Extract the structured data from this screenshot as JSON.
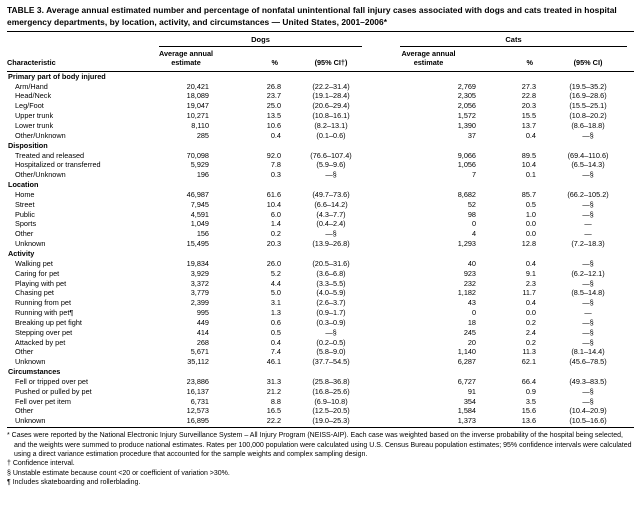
{
  "title": "TABLE 3. Average annual estimated number and percentage of nonfatal unintentional fall injury cases associated with dogs and cats treated in hospital emergency departments, by location, activity, and circumstances — United States, 2001–2006*",
  "header": {
    "characteristic": "Characteristic",
    "groups": [
      {
        "label": "Dogs",
        "estimate": "Average annual estimate",
        "pct": "%",
        "ci": "(95% CI†)"
      },
      {
        "label": "Cats",
        "estimate": "Average annual estimate",
        "pct": "%",
        "ci": "(95% CI)"
      }
    ]
  },
  "sections": [
    {
      "label": "Primary part of body injured",
      "rows": [
        {
          "label": "Arm/Hand",
          "dogs": [
            "20,421",
            "26.8",
            "(22.2–31.4)"
          ],
          "cats": [
            "2,769",
            "27.3",
            "(19.5–35.2)"
          ]
        },
        {
          "label": "Head/Neck",
          "dogs": [
            "18,089",
            "23.7",
            "(19.1–28.4)"
          ],
          "cats": [
            "2,305",
            "22.8",
            "(16.9–28.6)"
          ]
        },
        {
          "label": "Leg/Foot",
          "dogs": [
            "19,047",
            "25.0",
            "(20.6–29.4)"
          ],
          "cats": [
            "2,056",
            "20.3",
            "(15.5–25.1)"
          ]
        },
        {
          "label": "Upper trunk",
          "dogs": [
            "10,271",
            "13.5",
            "(10.8–16.1)"
          ],
          "cats": [
            "1,572",
            "15.5",
            "(10.8–20.2)"
          ]
        },
        {
          "label": "Lower trunk",
          "dogs": [
            "8,110",
            "10.6",
            "(8.2–13.1)"
          ],
          "cats": [
            "1,390",
            "13.7",
            "(8.6–18.8)"
          ]
        },
        {
          "label": "Other/Unknown",
          "dogs": [
            "285",
            "0.4",
            "(0.1–0.6)"
          ],
          "cats": [
            "37",
            "0.4",
            "—§"
          ]
        }
      ]
    },
    {
      "label": "Disposition",
      "rows": [
        {
          "label": "Treated and released",
          "dogs": [
            "70,098",
            "92.0",
            "(76.6–107.4)"
          ],
          "cats": [
            "9,066",
            "89.5",
            "(69.4–110.6)"
          ]
        },
        {
          "label": "Hospitalized or transferred",
          "dogs": [
            "5,929",
            "7.8",
            "(5.9–9.6)"
          ],
          "cats": [
            "1,056",
            "10.4",
            "(6.5–14.3)"
          ]
        },
        {
          "label": "Other/Unknown",
          "dogs": [
            "196",
            "0.3",
            "—§"
          ],
          "cats": [
            "7",
            "0.1",
            "—§"
          ]
        }
      ]
    },
    {
      "label": "Location",
      "rows": [
        {
          "label": "Home",
          "dogs": [
            "46,987",
            "61.6",
            "(49.7–73.6)"
          ],
          "cats": [
            "8,682",
            "85.7",
            "(66.2–105.2)"
          ]
        },
        {
          "label": "Street",
          "dogs": [
            "7,945",
            "10.4",
            "(6.6–14.2)"
          ],
          "cats": [
            "52",
            "0.5",
            "—§"
          ]
        },
        {
          "label": "Public",
          "dogs": [
            "4,591",
            "6.0",
            "(4.3–7.7)"
          ],
          "cats": [
            "98",
            "1.0",
            "—§"
          ]
        },
        {
          "label": "Sports",
          "dogs": [
            "1,049",
            "1.4",
            "(0.4–2.4)"
          ],
          "cats": [
            "0",
            "0.0",
            "—"
          ]
        },
        {
          "label": "Other",
          "dogs": [
            "156",
            "0.2",
            "—§"
          ],
          "cats": [
            "4",
            "0.0",
            "—"
          ]
        },
        {
          "label": "Unknown",
          "dogs": [
            "15,495",
            "20.3",
            "(13.9–26.8)"
          ],
          "cats": [
            "1,293",
            "12.8",
            "(7.2–18.3)"
          ]
        }
      ]
    },
    {
      "label": "Activity",
      "rows": [
        {
          "label": "Walking pet",
          "dogs": [
            "19,834",
            "26.0",
            "(20.5–31.6)"
          ],
          "cats": [
            "40",
            "0.4",
            "—§"
          ]
        },
        {
          "label": "Caring for pet",
          "dogs": [
            "3,929",
            "5.2",
            "(3.6–6.8)"
          ],
          "cats": [
            "923",
            "9.1",
            "(6.2–12.1)"
          ]
        },
        {
          "label": "Playing with pet",
          "dogs": [
            "3,372",
            "4.4",
            "(3.3–5.5)"
          ],
          "cats": [
            "232",
            "2.3",
            "—§"
          ]
        },
        {
          "label": "Chasing pet",
          "dogs": [
            "3,779",
            "5.0",
            "(4.0–5.9)"
          ],
          "cats": [
            "1,182",
            "11.7",
            "(8.5–14.8)"
          ]
        },
        {
          "label": "Running from pet",
          "dogs": [
            "2,399",
            "3.1",
            "(2.6–3.7)"
          ],
          "cats": [
            "43",
            "0.4",
            "—§"
          ]
        },
        {
          "label": "Running with pet¶",
          "dogs": [
            "995",
            "1.3",
            "(0.9–1.7)"
          ],
          "cats": [
            "0",
            "0.0",
            "—"
          ]
        },
        {
          "label": "Breaking up pet fight",
          "dogs": [
            "449",
            "0.6",
            "(0.3–0.9)"
          ],
          "cats": [
            "18",
            "0.2",
            "—§"
          ]
        },
        {
          "label": "Stepping over pet",
          "dogs": [
            "414",
            "0.5",
            "—§"
          ],
          "cats": [
            "245",
            "2.4",
            "—§"
          ]
        },
        {
          "label": "Attacked by pet",
          "dogs": [
            "268",
            "0.4",
            "(0.2–0.5)"
          ],
          "cats": [
            "20",
            "0.2",
            "—§"
          ]
        },
        {
          "label": "Other",
          "dogs": [
            "5,671",
            "7.4",
            "(5.8–9.0)"
          ],
          "cats": [
            "1,140",
            "11.3",
            "(8.1–14.4)"
          ]
        },
        {
          "label": "Unknown",
          "dogs": [
            "35,112",
            "46.1",
            "(37.7–54.5)"
          ],
          "cats": [
            "6,287",
            "62.1",
            "(45.6–78.5)"
          ]
        }
      ]
    },
    {
      "label": "Circumstances",
      "rows": [
        {
          "label": "Fell or tripped over pet",
          "dogs": [
            "23,886",
            "31.3",
            "(25.8–36.8)"
          ],
          "cats": [
            "6,727",
            "66.4",
            "(49.3–83.5)"
          ]
        },
        {
          "label": "Pushed or pulled by pet",
          "dogs": [
            "16,137",
            "21.2",
            "(16.8–25.6)"
          ],
          "cats": [
            "91",
            "0.9",
            "—§"
          ]
        },
        {
          "label": "Fell over pet item",
          "dogs": [
            "6,731",
            "8.8",
            "(6.9–10.8)"
          ],
          "cats": [
            "354",
            "3.5",
            "—§"
          ]
        },
        {
          "label": "Other",
          "dogs": [
            "12,573",
            "16.5",
            "(12.5–20.5)"
          ],
          "cats": [
            "1,584",
            "15.6",
            "(10.4–20.9)"
          ]
        },
        {
          "label": "Unknown",
          "dogs": [
            "16,895",
            "22.2",
            "(19.0–25.3)"
          ],
          "cats": [
            "1,373",
            "13.6",
            "(10.5–16.6)"
          ]
        }
      ]
    }
  ],
  "footnotes": [
    "* Cases were reported by the National Electronic Injury Surveillance System – All Injury Program (NEISS-AIP). Each case was weighted based on the inverse probability of the hospital being selected, and the weights were summed to produce national estimates. Rates per 100,000 population were calculated using U.S. Census Bureau population estimates; 95% confidence intervals were calculated using a direct variance estimation procedure that accounted for the sample weights and complex sampling design.",
    "† Confidence interval.",
    "§ Unstable estimate because count <20 or coefficient of variation >30%.",
    "¶ Includes skateboarding and rollerblading."
  ]
}
